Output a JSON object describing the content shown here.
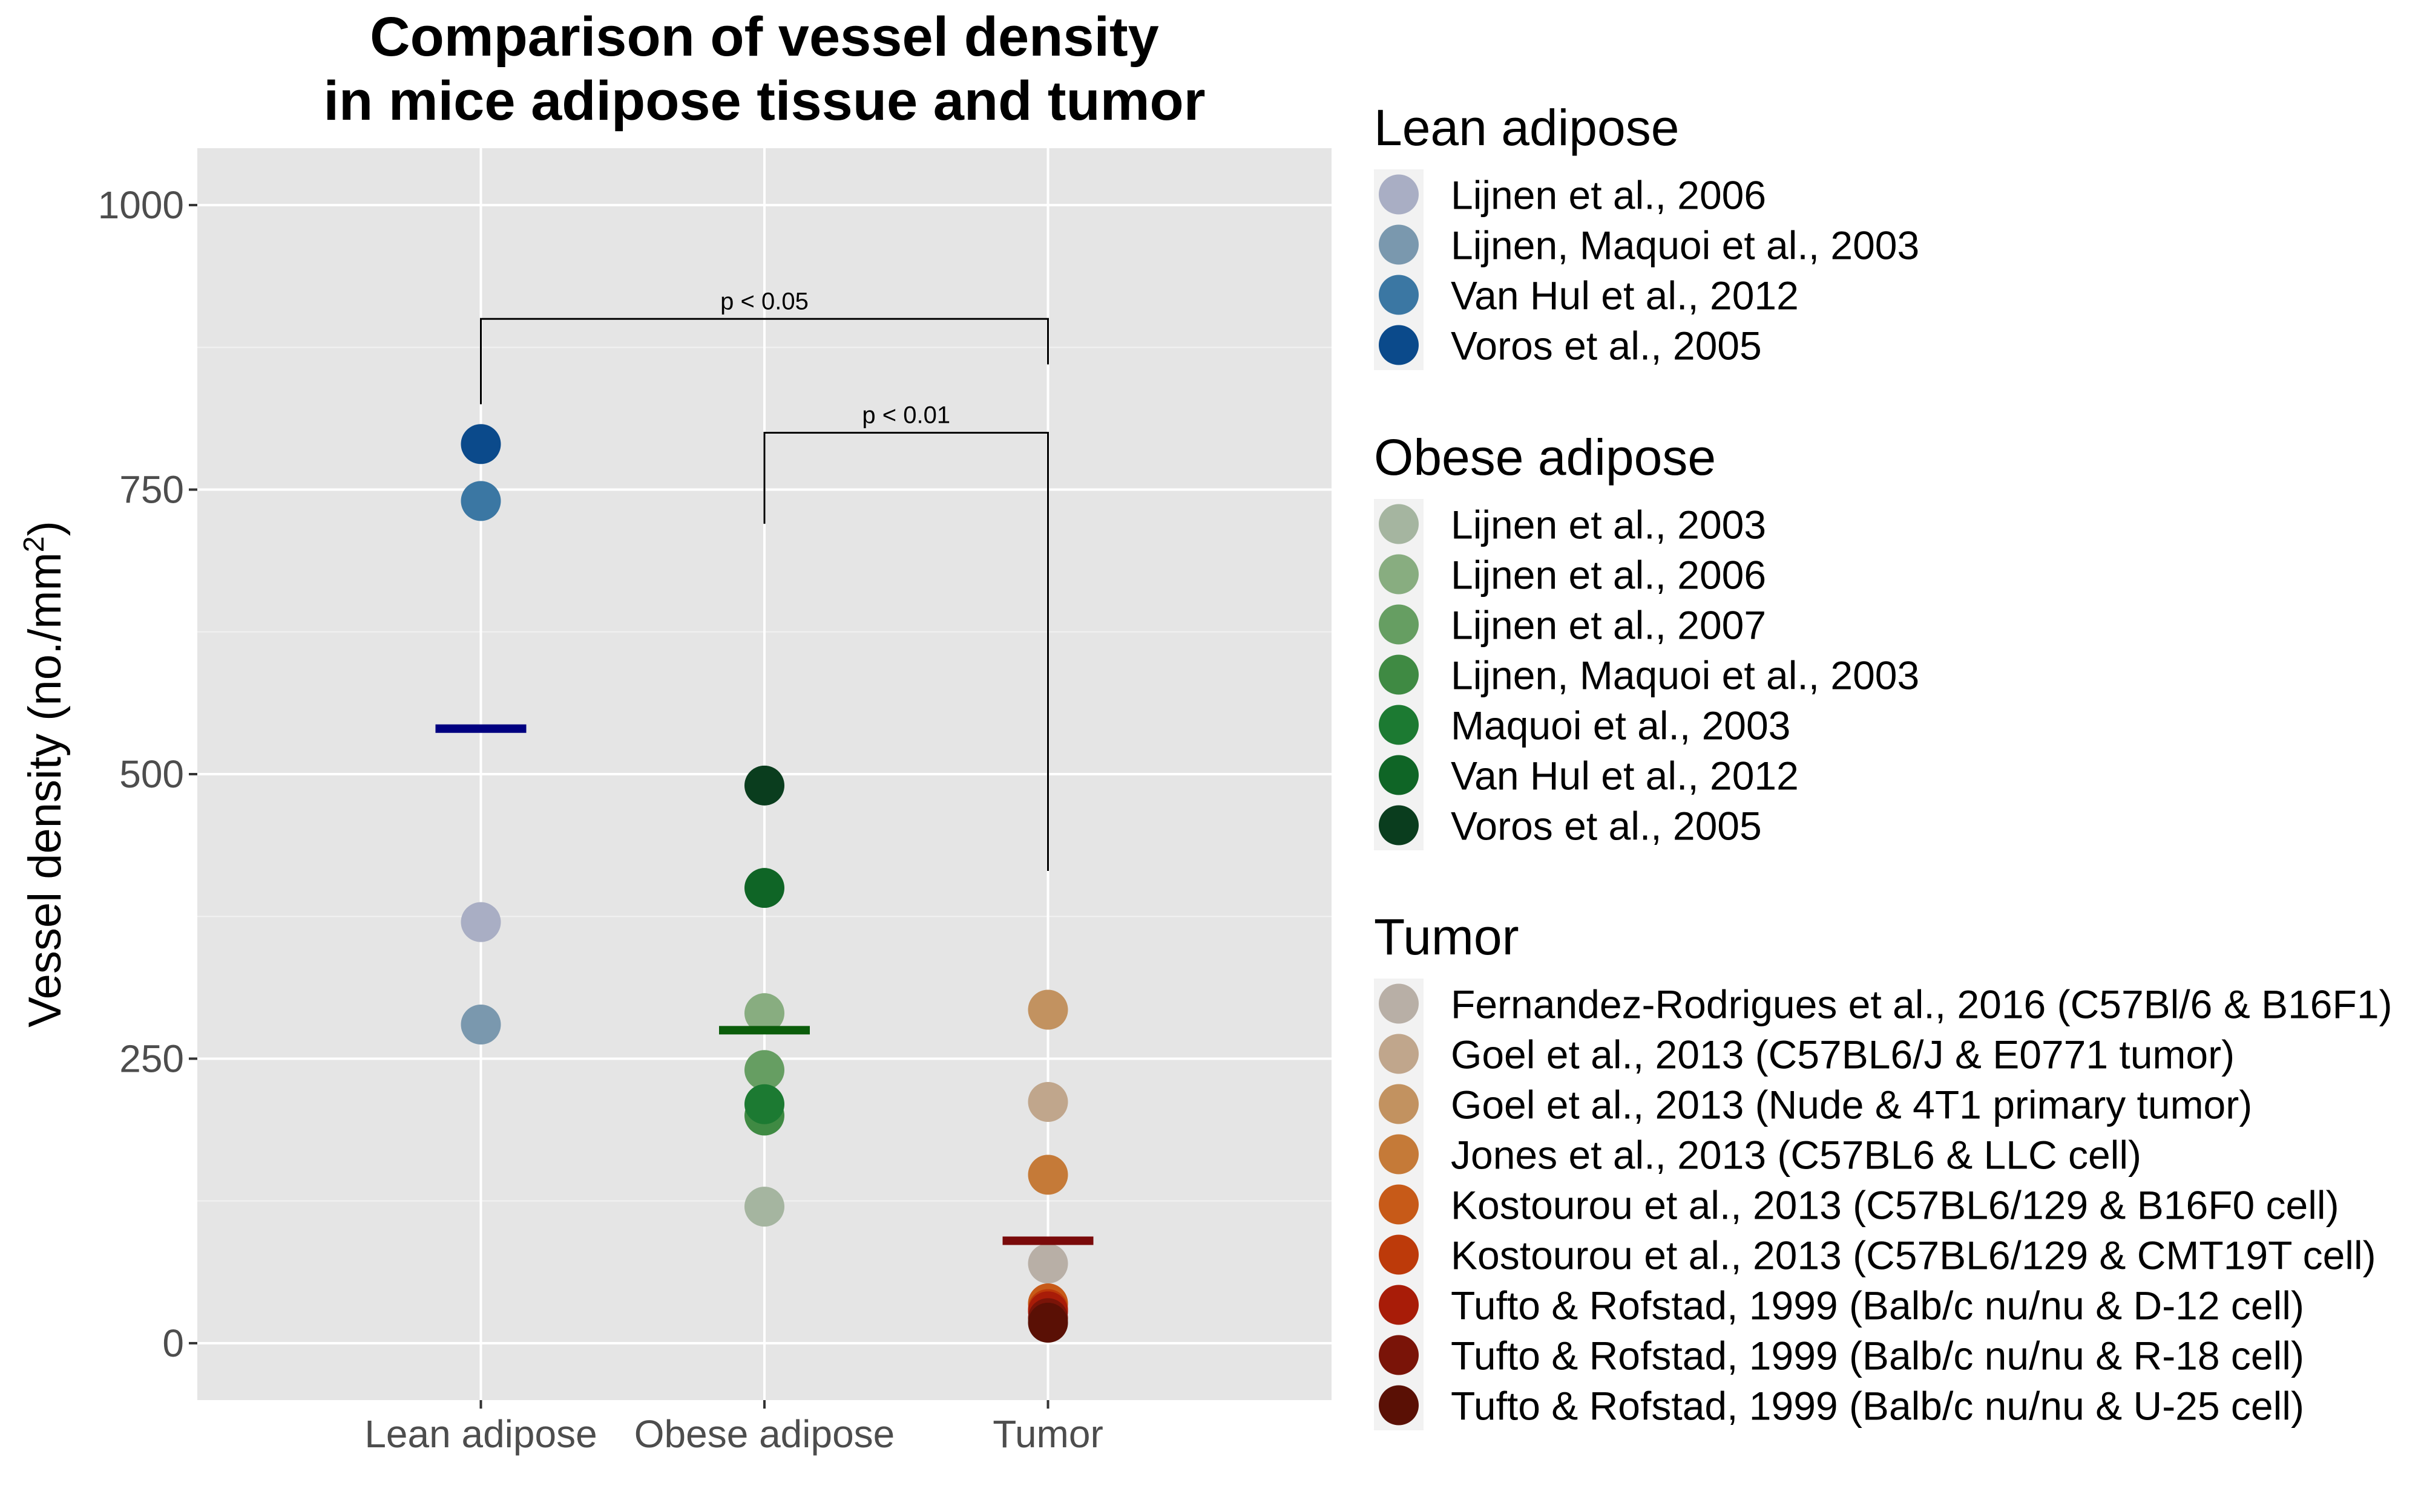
{
  "chart_data": {
    "type": "scatter",
    "title_lines": [
      "Comparison of vessel density",
      "in mice adipose tissue and tumor"
    ],
    "ylabel": {
      "main": "Vessel density (no./mm",
      "sup": "2",
      "end": ")"
    },
    "xlabel": "",
    "categories": [
      "Lean adipose",
      "Obese adipose",
      "Tumor"
    ],
    "ylim": [
      -50,
      1050
    ],
    "yticks": [
      0,
      250,
      500,
      750,
      1000
    ],
    "ytick_labels": [
      "0",
      "250",
      "500",
      "750",
      "1000"
    ],
    "grid": true,
    "legend_position": "right",
    "groups": [
      {
        "title": "Lean adipose",
        "category": "Lean adipose",
        "mean": 540,
        "mean_color": "#000080",
        "series": [
          {
            "name": "Lijnen et al., 2006",
            "color": "#A9AEC4",
            "value": 370
          },
          {
            "name": "Lijnen, Maquoi et al., 2003",
            "color": "#7A98AE",
            "value": 280
          },
          {
            "name": "Van Hul et al., 2012",
            "color": "#3B77A3",
            "value": 740
          },
          {
            "name": "Voros et al., 2005",
            "color": "#0B4A8B",
            "value": 790
          }
        ]
      },
      {
        "title": "Obese adipose",
        "category": "Obese adipose",
        "mean": 275,
        "mean_color": "#0B5D0B",
        "series": [
          {
            "name": "Lijnen et al., 2003",
            "color": "#A5B5A0",
            "value": 120
          },
          {
            "name": "Lijnen et al., 2006",
            "color": "#88AD80",
            "value": 290
          },
          {
            "name": "Lijnen et al., 2007",
            "color": "#669E62",
            "value": 240
          },
          {
            "name": "Lijnen, Maquoi et al., 2003",
            "color": "#3F8A43",
            "value": 200
          },
          {
            "name": "Maquoi et al., 2003",
            "color": "#1C7A32",
            "value": 210
          },
          {
            "name": "Van Hul et al., 2012",
            "color": "#0F6526",
            "value": 400
          },
          {
            "name": "Voros et al., 2005",
            "color": "#0A3D1E",
            "value": 490
          }
        ]
      },
      {
        "title": "Tumor",
        "category": "Tumor",
        "mean": 90,
        "mean_color": "#7A0A0A",
        "series": [
          {
            "name": "Fernandez-Rodrigues et al., 2016 (C57Bl/6 & B16F1)",
            "color": "#B8AFA6",
            "value": 70
          },
          {
            "name": "Goel et al., 2013 (C57BL6/J & E0771 tumor)",
            "color": "#C0A68C",
            "value": 212
          },
          {
            "name": "Goel et al., 2013 (Nude & 4T1 primary tumor)",
            "color": "#C29260",
            "value": 293
          },
          {
            "name": "Jones et al., 2013 (C57BL6 & LLC cell)",
            "color": "#C57A38",
            "value": 148
          },
          {
            "name": "Kostourou et al., 2013 (C57BL6/129 & B16F0 cell)",
            "color": "#C75A18",
            "value": 35
          },
          {
            "name": "Kostourou et al., 2013 (C57BL6/129 & CMT19T cell)",
            "color": "#BD3A0A",
            "value": 30
          },
          {
            "name": "Tufto & Rofstad, 1999 (Balb/c nu/nu & D-12 cell)",
            "color": "#A81C08",
            "value": 28
          },
          {
            "name": "Tufto & Rofstad, 1999 (Balb/c nu/nu & R-18 cell)",
            "color": "#7A1408",
            "value": 22
          },
          {
            "name": "Tufto & Rofstad, 1999 (Balb/c nu/nu & U-25 cell)",
            "color": "#5A1005",
            "value": 18
          }
        ]
      }
    ],
    "annotations": [
      {
        "text": "p < 0.05",
        "from": "Lean adipose",
        "to": "Tumor",
        "y": 900,
        "drop_from": 825,
        "drop_to": 860
      },
      {
        "text": "p < 0.01",
        "from": "Obese adipose",
        "to": "Tumor",
        "y": 800,
        "drop_from": 720,
        "drop_to": 415
      }
    ]
  }
}
